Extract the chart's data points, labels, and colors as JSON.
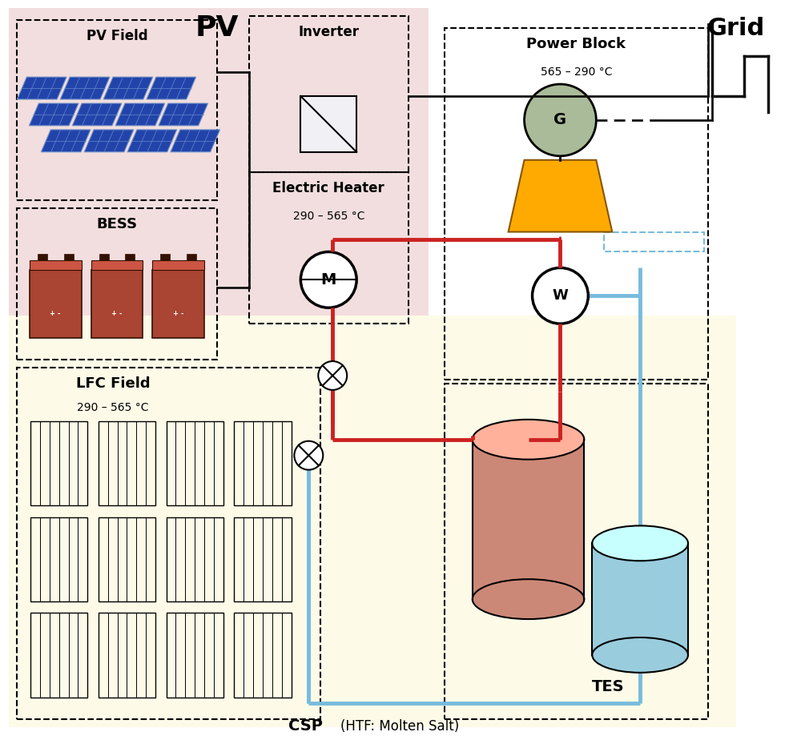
{
  "fig_width": 10.0,
  "fig_height": 9.19,
  "dpi": 100,
  "bg_color": "#FFFFFF",
  "pv_bg": "#F2DEDE",
  "csp_bg": "#FDFBE8",
  "title_pv": "PV",
  "title_grid": "Grid",
  "title_csp": "CSP (HTF: Molten Salt)",
  "label_pv_field": "PV Field",
  "label_bess": "BESS",
  "label_inverter": "Inverter",
  "label_elheater": "Electric Heater",
  "label_elheater_temp": "290 – 565 °C",
  "label_lfc": "LFC Field",
  "label_lfc_temp": "290 – 565 °C",
  "label_powerblock": "Power Block",
  "label_powerblock_temp": "565 – 290 °C",
  "label_tes": "TES",
  "color_hot": "#CC2222",
  "color_cold": "#77BBDD",
  "color_elec": "#111111",
  "color_pv_panel": "#2244AA",
  "color_bess": "#AA4433",
  "color_turbine": "#FFAA00",
  "color_generator": "#AABB99",
  "color_hot_tank": "#CC8877",
  "color_cold_tank": "#99CCDD"
}
